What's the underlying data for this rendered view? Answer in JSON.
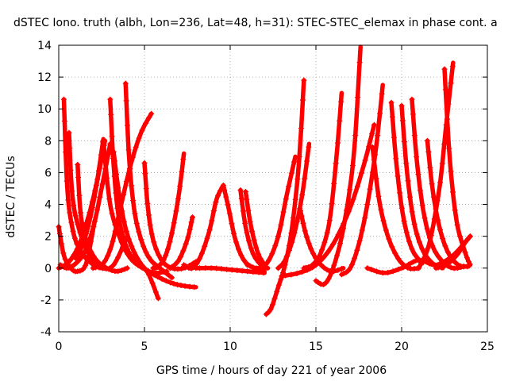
{
  "chart_data": {
    "type": "scatter",
    "title": "dSTEC Iono. truth (albh, Lon=236, Lat=48, h=31): STEC-STEC_elemax in phase cont. a",
    "xlabel": "GPS time / hours of day 221 of year 2006",
    "ylabel": "dSTEC  / TECUs",
    "xlim": [
      0,
      25
    ],
    "ylim": [
      -4,
      14
    ],
    "xticks": [
      0,
      5,
      10,
      15,
      20,
      25
    ],
    "yticks": [
      -4,
      -2,
      0,
      2,
      4,
      6,
      8,
      10,
      12,
      14
    ],
    "grid": true,
    "marker": "plus",
    "color": "#ff0000",
    "series": [
      {
        "x": [
          0.0,
          0.3,
          0.7,
          1.1,
          1.6,
          2.1
        ],
        "y": [
          2.6,
          0.8,
          0.0,
          -0.2,
          0.3,
          3.0
        ]
      },
      {
        "x": [
          0.1,
          0.5,
          1.0,
          1.5,
          2.0,
          2.5,
          3.0
        ],
        "y": [
          0.2,
          0.0,
          0.3,
          1.0,
          2.5,
          5.0,
          7.8
        ]
      },
      {
        "x": [
          0.3,
          0.5,
          0.8,
          1.2,
          1.8,
          2.5,
          3.2,
          4.0
        ],
        "y": [
          10.6,
          5.0,
          2.5,
          1.2,
          0.4,
          0.0,
          0.2,
          2.0
        ]
      },
      {
        "x": [
          0.6,
          0.8,
          1.2,
          1.7,
          2.2
        ],
        "y": [
          8.5,
          4.5,
          2.4,
          1.0,
          0.3
        ]
      },
      {
        "x": [
          1.1,
          1.3,
          1.7,
          2.2,
          2.8,
          3.4,
          4.0
        ],
        "y": [
          6.5,
          3.2,
          1.5,
          0.5,
          0.0,
          -0.2,
          0.0
        ]
      },
      {
        "x": [
          0.0,
          0.6,
          1.2,
          1.8,
          2.3,
          2.7
        ],
        "y": [
          0.0,
          0.4,
          1.5,
          3.5,
          5.8,
          8.0
        ]
      },
      {
        "x": [
          1.0,
          1.4,
          1.8,
          2.2,
          2.6
        ],
        "y": [
          0.6,
          1.5,
          3.0,
          5.2,
          8.1
        ]
      },
      {
        "x": [
          2.6,
          3.0,
          3.6,
          4.2,
          4.9,
          5.6,
          6.3
        ],
        "y": [
          8.0,
          4.0,
          1.8,
          0.6,
          0.0,
          -0.3,
          -0.2
        ]
      },
      {
        "x": [
          3.0,
          3.2,
          3.5,
          4.0,
          4.6,
          5.2,
          5.8
        ],
        "y": [
          10.6,
          6.5,
          3.2,
          1.2,
          0.3,
          -0.3,
          -1.9
        ]
      },
      {
        "x": [
          3.2,
          3.5,
          3.9,
          4.4,
          5.0,
          5.7,
          6.5,
          7.2,
          8.0
        ],
        "y": [
          7.3,
          4.8,
          2.5,
          1.0,
          0.0,
          -0.5,
          -0.9,
          -1.1,
          -1.2
        ]
      },
      {
        "x": [
          3.9,
          4.1,
          4.4,
          4.8,
          5.3,
          5.9,
          6.6
        ],
        "y": [
          11.6,
          7.0,
          3.7,
          1.8,
          0.6,
          0.0,
          -0.6
        ]
      },
      {
        "x": [
          2.0,
          2.6,
          3.1,
          3.6,
          4.2,
          4.8,
          5.4
        ],
        "y": [
          0.0,
          0.3,
          1.5,
          3.8,
          6.5,
          8.5,
          9.7
        ]
      },
      {
        "x": [
          5.0,
          5.2,
          5.5,
          6.0,
          6.6,
          7.3,
          8.0
        ],
        "y": [
          6.6,
          3.8,
          1.8,
          0.5,
          0.0,
          0.0,
          0.4
        ]
      },
      {
        "x": [
          5.5,
          5.8,
          6.2,
          6.6,
          7.0,
          7.3
        ],
        "y": [
          0.0,
          0.1,
          0.7,
          2.2,
          4.6,
          7.2
        ]
      },
      {
        "x": [
          6.5,
          7.0,
          7.5,
          7.8
        ],
        "y": [
          0.0,
          0.5,
          1.8,
          3.2
        ]
      },
      {
        "x": [
          7.3,
          7.8,
          8.3,
          8.8,
          9.2,
          9.6
        ],
        "y": [
          0.2,
          0.0,
          0.8,
          2.4,
          4.3,
          5.2
        ]
      },
      {
        "x": [
          9.6,
          9.9,
          10.3,
          10.8,
          11.4,
          12.0
        ],
        "y": [
          5.2,
          3.8,
          1.8,
          0.5,
          0.0,
          -0.2
        ]
      },
      {
        "x": [
          10.6,
          10.9,
          11.3,
          11.8,
          12.2
        ],
        "y": [
          4.9,
          2.6,
          1.0,
          0.2,
          0.0
        ]
      },
      {
        "x": [
          10.9,
          11.2,
          11.6,
          12.0
        ],
        "y": [
          4.8,
          2.7,
          1.0,
          0.2
        ]
      },
      {
        "x": [
          8.0,
          9.0,
          10.0,
          11.0,
          12.0
        ],
        "y": [
          0.0,
          0.0,
          -0.1,
          -0.2,
          -0.3
        ]
      },
      {
        "x": [
          11.0,
          11.6,
          12.2,
          12.8,
          13.3,
          13.8
        ],
        "y": [
          0.2,
          0.0,
          0.4,
          2.0,
          4.6,
          7.0
        ]
      },
      {
        "x": [
          12.1,
          12.4,
          12.8,
          13.2,
          13.6,
          14.0,
          14.3
        ],
        "y": [
          -2.9,
          -2.5,
          -1.2,
          0.2,
          2.5,
          6.5,
          11.8
        ]
      },
      {
        "x": [
          12.8,
          13.2,
          13.7,
          14.2,
          14.6
        ],
        "y": [
          0.0,
          0.5,
          2.0,
          4.6,
          7.8
        ]
      },
      {
        "x": [
          14.1,
          14.4,
          14.8,
          15.3,
          15.9,
          16.6
        ],
        "y": [
          3.6,
          2.2,
          1.0,
          0.2,
          -0.2,
          0.0
        ]
      },
      {
        "x": [
          14.3,
          14.8,
          15.3,
          15.8,
          16.2,
          16.5
        ],
        "y": [
          0.0,
          0.2,
          1.0,
          3.0,
          7.0,
          11.0
        ]
      },
      {
        "x": [
          15.0,
          15.5,
          16.0,
          16.6,
          17.2,
          17.6
        ],
        "y": [
          -0.8,
          -1.0,
          0.0,
          2.5,
          7.0,
          13.9
        ]
      },
      {
        "x": [
          13.0,
          14.0,
          15.0,
          16.0,
          17.0,
          17.8,
          18.4
        ],
        "y": [
          -0.5,
          -0.3,
          0.2,
          1.5,
          3.8,
          6.5,
          9.0
        ]
      },
      {
        "x": [
          16.5,
          17.0,
          17.5,
          18.0,
          18.5,
          18.9
        ],
        "y": [
          -0.4,
          0.0,
          1.5,
          4.0,
          7.5,
          11.5
        ]
      },
      {
        "x": [
          18.3,
          18.7,
          19.2,
          19.8,
          20.4,
          21.0
        ],
        "y": [
          7.6,
          4.2,
          2.0,
          0.6,
          0.0,
          0.0
        ]
      },
      {
        "x": [
          19.4,
          19.7,
          20.1,
          20.6,
          21.2
        ],
        "y": [
          10.4,
          6.5,
          3.2,
          1.2,
          0.3
        ]
      },
      {
        "x": [
          20.0,
          20.3,
          20.7,
          21.2,
          21.8,
          22.4
        ],
        "y": [
          10.2,
          6.2,
          3.0,
          1.2,
          0.3,
          0.0
        ]
      },
      {
        "x": [
          20.6,
          20.9,
          21.3,
          21.8,
          22.4,
          23.0,
          23.6
        ],
        "y": [
          10.6,
          6.6,
          3.4,
          1.4,
          0.4,
          0.0,
          0.1
        ]
      },
      {
        "x": [
          21.5,
          21.8,
          22.2,
          22.7,
          23.3,
          23.9
        ],
        "y": [
          8.0,
          5.0,
          2.6,
          1.0,
          0.2,
          0.1
        ]
      },
      {
        "x": [
          22.5,
          22.8,
          23.2,
          23.7,
          24.0
        ],
        "y": [
          12.5,
          7.0,
          3.0,
          1.0,
          0.2
        ]
      },
      {
        "x": [
          21.0,
          21.6,
          22.2,
          22.6,
          23.0
        ],
        "y": [
          0.0,
          1.5,
          5.0,
          9.0,
          12.9
        ]
      },
      {
        "x": [
          18.0,
          19.0,
          20.0,
          21.0,
          22.0,
          23.0,
          24.0
        ],
        "y": [
          0.0,
          -0.3,
          0.0,
          0.5,
          0.2,
          0.8,
          2.0
        ]
      },
      {
        "x": [
          22.0,
          22.6,
          23.2,
          23.7,
          24.0
        ],
        "y": [
          0.0,
          0.2,
          0.8,
          1.6,
          2.0
        ]
      }
    ]
  }
}
